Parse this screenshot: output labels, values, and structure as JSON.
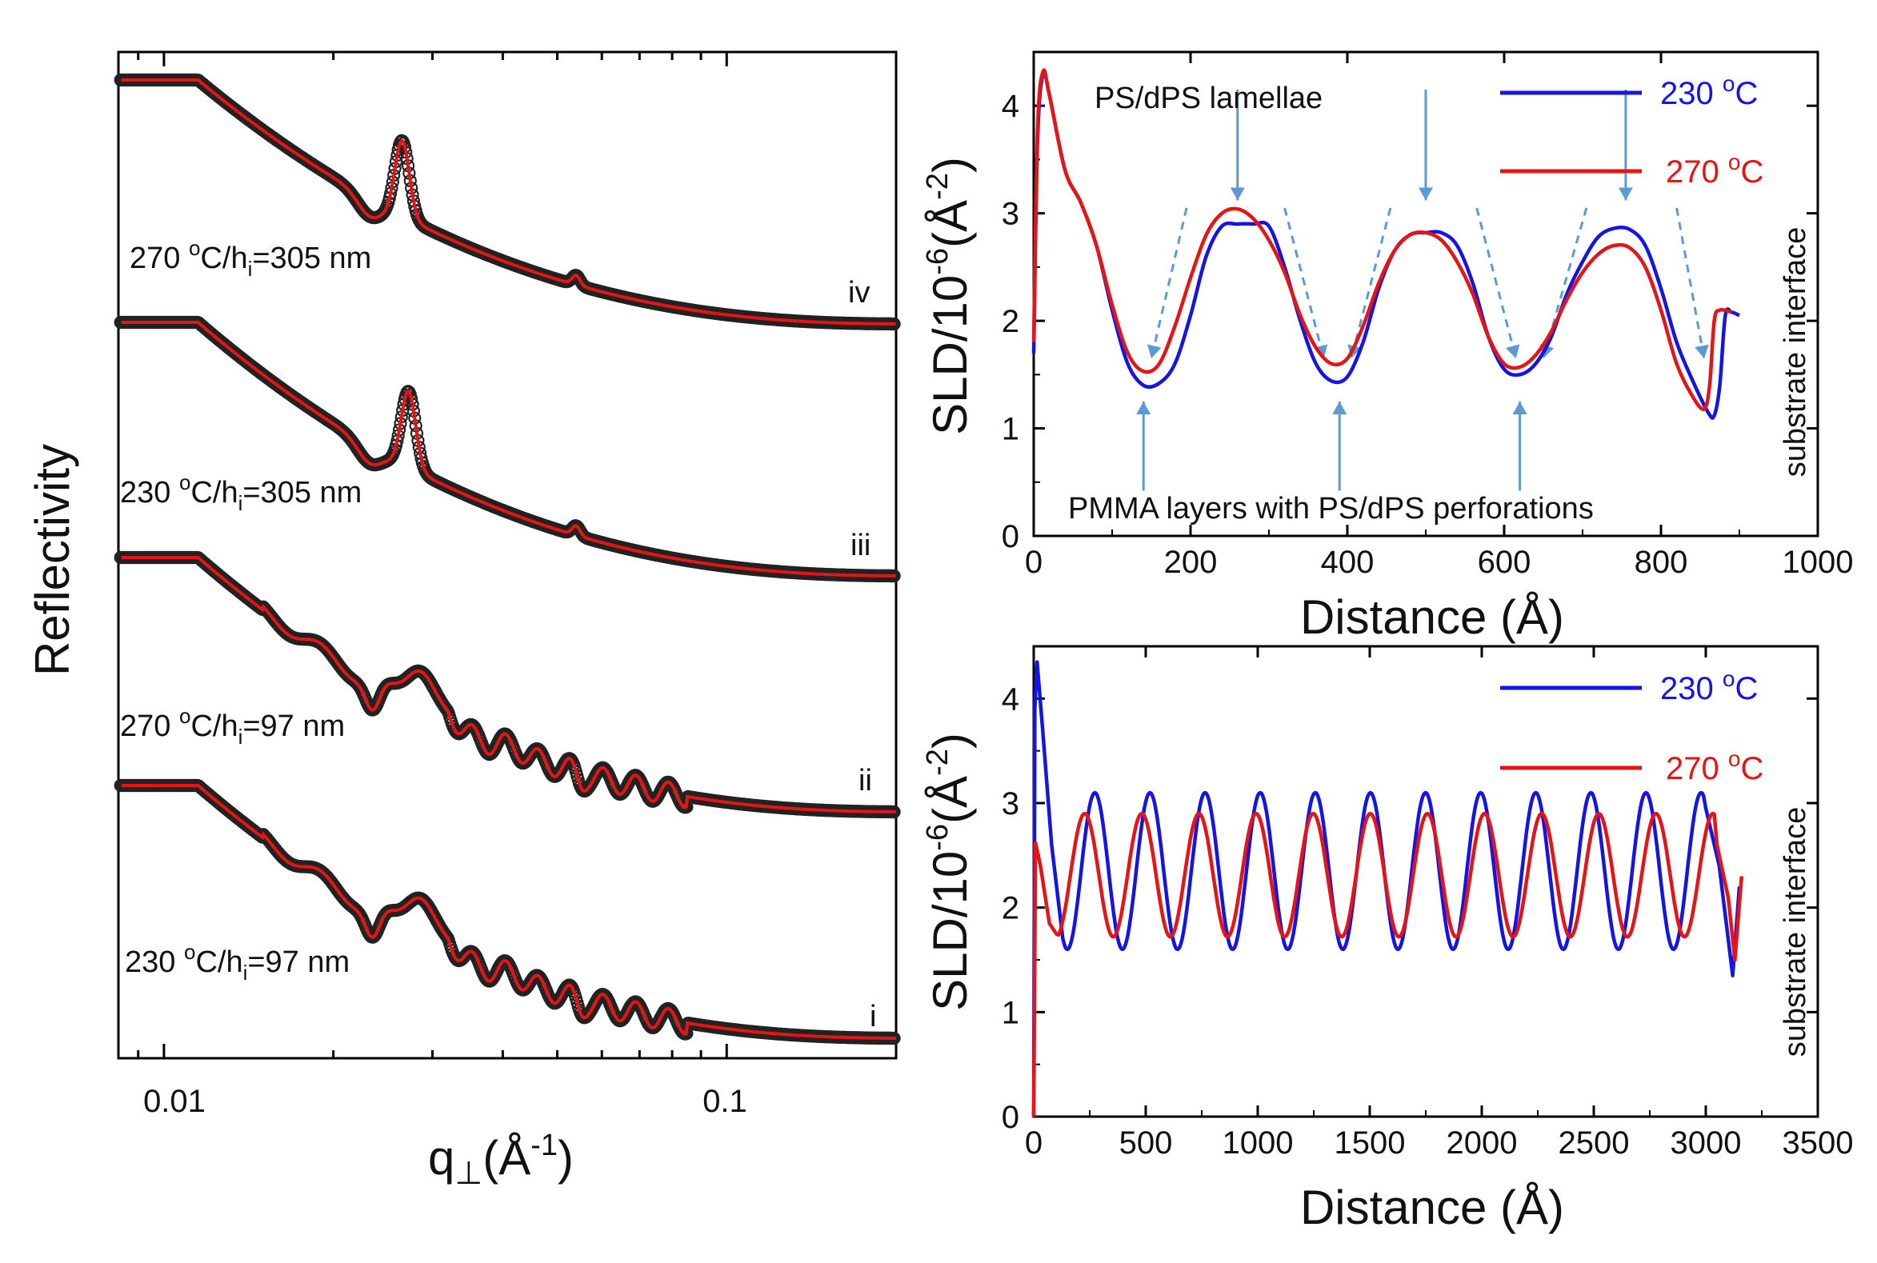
{
  "colors": {
    "series_230": "#1414e6",
    "series_270": "#e61414",
    "data_marker": "#222222",
    "arrow": "#5b9bd5",
    "axis": "#000000"
  },
  "panels": {
    "reflectivity": {
      "ylabel": "Reflectivity",
      "xlabel_main": "q",
      "xlabel_sub": "⊥",
      "xlabel_paren": "(Å",
      "xlabel_sup": "-1",
      "xlabel_close": ")",
      "tick_labels": [
        "0.01",
        "0.1"
      ],
      "curve_labels": [
        {
          "temp": "270 ",
          "deg": "o",
          "mid": "C/h",
          "sub": "i",
          "tail": "=305 nm",
          "roman": "iv"
        },
        {
          "temp": "230 ",
          "deg": "o",
          "mid": "C/h",
          "sub": "i",
          "tail": "=305 nm",
          "roman": "iii"
        },
        {
          "temp": "270 ",
          "deg": "o",
          "mid": "C/h",
          "sub": "i",
          "tail": "=97 nm",
          "roman": "ii"
        },
        {
          "temp": "230 ",
          "deg": "o",
          "mid": "C/h",
          "sub": "i",
          "tail": "=97 nm",
          "roman": "i"
        }
      ]
    },
    "sld_top": {
      "ylabel": "SLD/10",
      "ylabel_sup1": "-6",
      "ylabel_mid": "(Å",
      "ylabel_sup2": "-2",
      "ylabel_close": ")",
      "xlabel": "Distance (Å)",
      "right_label": "substrate interface",
      "annotation_top": "PS/dPS lamellae",
      "annotation_bottom": "PMMA layers with PS/dPS perforations",
      "x_ticks": [
        "0",
        "200",
        "400",
        "600",
        "800",
        "1000"
      ],
      "y_ticks": [
        "0",
        "1",
        "2",
        "3",
        "4"
      ],
      "legend": [
        {
          "label": "230 ",
          "sup": "o",
          "unit": "C"
        },
        {
          "label": "270 ",
          "sup": "o",
          "unit": "C"
        }
      ]
    },
    "sld_bottom": {
      "ylabel": "SLD/10",
      "ylabel_sup1": "-6",
      "ylabel_mid": "(Å",
      "ylabel_sup2": "-2",
      "ylabel_close": ")",
      "xlabel": "Distance (Å)",
      "right_label": "substrate interface",
      "x_ticks": [
        "0",
        "500",
        "1000",
        "1500",
        "2000",
        "2500",
        "3000",
        "3500"
      ],
      "y_ticks": [
        "0",
        "1",
        "2",
        "3",
        "4"
      ],
      "legend": [
        {
          "label": "230 ",
          "sup": "o",
          "unit": "C"
        },
        {
          "label": "270 ",
          "sup": "o",
          "unit": "C"
        }
      ]
    }
  },
  "chart_data": [
    {
      "type": "scatter",
      "title": "",
      "xlabel": "q⊥(Å-1)",
      "ylabel": "Reflectivity",
      "xscale": "log",
      "xlim": [
        0.0083,
        0.2
      ],
      "note": "Log-scale reflectivity curves, vertically offset; black open circles = data, red line = fit",
      "series": [
        {
          "name": "270 oC/hi=305 nm (iv)",
          "critical_q": 0.0115,
          "peaks_q": [
            0.027,
            0.054
          ]
        },
        {
          "name": "230 oC/hi=305 nm (iii)",
          "critical_q": 0.0115,
          "peaks_q": [
            0.027,
            0.054
          ]
        },
        {
          "name": "270 oC/hi=97 nm (ii)",
          "critical_q": 0.0115,
          "peaks_q": [
            0.0195,
            0.027,
            0.034,
            0.042,
            0.058,
            0.066,
            0.074
          ]
        },
        {
          "name": "230 oC/hi=97 nm (i)",
          "critical_q": 0.0115,
          "peaks_q": [
            0.0195,
            0.027,
            0.034,
            0.042,
            0.058,
            0.066,
            0.074
          ]
        }
      ]
    },
    {
      "type": "line",
      "title": "",
      "xlabel": "Distance (Å)",
      "ylabel": "SLD/10-6(Å-2)",
      "xlim": [
        0,
        1000
      ],
      "ylim": [
        0,
        4.5
      ],
      "series": [
        {
          "name": "230 oC",
          "x": [
            0,
            5,
            12,
            20,
            40,
            60,
            80,
            100,
            120,
            140,
            160,
            180,
            200,
            220,
            240,
            260,
            280,
            300,
            320,
            340,
            360,
            380,
            400,
            420,
            440,
            460,
            480,
            500,
            520,
            540,
            560,
            580,
            600,
            620,
            640,
            660,
            680,
            700,
            720,
            740,
            760,
            780,
            800,
            820,
            840,
            860,
            868,
            875,
            882,
            890,
            900
          ],
          "y": [
            1.7,
            3.7,
            4.3,
            4.1,
            3.4,
            3.1,
            2.7,
            2.1,
            1.6,
            1.4,
            1.42,
            1.6,
            2.05,
            2.6,
            2.88,
            2.9,
            2.9,
            2.88,
            2.5,
            2.0,
            1.6,
            1.44,
            1.48,
            1.8,
            2.3,
            2.65,
            2.8,
            2.82,
            2.82,
            2.7,
            2.35,
            1.85,
            1.55,
            1.5,
            1.6,
            1.85,
            2.25,
            2.55,
            2.78,
            2.86,
            2.85,
            2.7,
            2.3,
            1.8,
            1.45,
            1.15,
            1.12,
            1.4,
            2.05,
            2.08,
            2.05
          ]
        },
        {
          "name": "270 oC",
          "x": [
            0,
            5,
            12,
            20,
            40,
            60,
            80,
            100,
            120,
            140,
            160,
            180,
            200,
            220,
            240,
            260,
            280,
            300,
            320,
            340,
            360,
            380,
            400,
            420,
            440,
            460,
            480,
            500,
            520,
            540,
            560,
            580,
            600,
            620,
            640,
            660,
            680,
            700,
            720,
            740,
            760,
            780,
            800,
            820,
            840,
            855,
            862,
            868,
            875,
            890
          ],
          "y": [
            1.8,
            3.8,
            4.32,
            4.1,
            3.4,
            3.1,
            2.7,
            2.15,
            1.7,
            1.53,
            1.6,
            1.95,
            2.4,
            2.8,
            3.0,
            3.04,
            2.95,
            2.75,
            2.45,
            2.05,
            1.75,
            1.6,
            1.65,
            1.95,
            2.35,
            2.65,
            2.8,
            2.82,
            2.75,
            2.55,
            2.25,
            1.85,
            1.6,
            1.57,
            1.68,
            1.9,
            2.2,
            2.45,
            2.62,
            2.7,
            2.68,
            2.5,
            2.1,
            1.6,
            1.3,
            1.18,
            1.4,
            2.0,
            2.1,
            2.08
          ]
        }
      ],
      "annotations": [
        "PS/dPS lamellae",
        "PMMA layers with PS/dPS perforations",
        "substrate interface"
      ]
    },
    {
      "type": "line",
      "title": "",
      "xlabel": "Distance (Å)",
      "ylabel": "SLD/10-6(Å-2)",
      "xlim": [
        0,
        3500
      ],
      "ylim": [
        0,
        4.5
      ],
      "series": [
        {
          "name": "230 oC",
          "start": [
            [
              0,
              0
            ],
            [
              5,
              3.9
            ],
            [
              15,
              4.35
            ],
            [
              40,
              3.7
            ],
            [
              80,
              2.6
            ],
            [
              130,
              1.7
            ]
          ],
          "period": 246,
          "first_min_x": 150,
          "max": 3.1,
          "min": 1.6,
          "end": [
            [
              3000,
              2.95
            ],
            [
              3060,
              2.4
            ],
            [
              3120,
              1.35
            ],
            [
              3150,
              2.2
            ]
          ]
        },
        {
          "name": "270 oC",
          "start": [
            [
              0,
              0
            ],
            [
              8,
              2.62
            ],
            [
              30,
              2.4
            ],
            [
              70,
              1.85
            ],
            [
              100,
              1.75
            ]
          ],
          "period": 255,
          "first_min_x": 100,
          "max": 2.9,
          "min": 1.72,
          "end": [
            [
              3050,
              2.6
            ],
            [
              3100,
              2.1
            ],
            [
              3130,
              1.5
            ],
            [
              3160,
              2.3
            ]
          ]
        }
      ],
      "annotations": [
        "substrate interface"
      ]
    }
  ]
}
